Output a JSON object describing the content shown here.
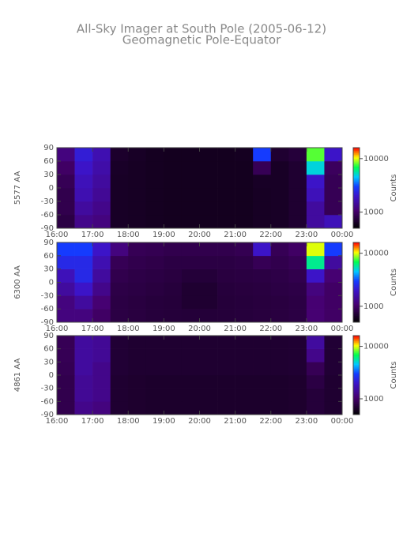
{
  "title": "All-Sky Imager at South Pole (2005-06-12)",
  "subtitle": "Geomagnetic Pole-Equator",
  "chart_data": [
    {
      "type": "heatmap",
      "ylabel": "5577 AA",
      "colorbar_label": "Counts",
      "color_scale": "log",
      "x_bins": [
        16,
        16.5,
        17,
        17.5,
        18,
        18.5,
        19,
        19.5,
        20,
        20.5,
        21,
        21.5,
        22,
        22.5,
        23,
        23.5,
        24
      ],
      "y_bins": [
        -90,
        -60,
        -30,
        0,
        30,
        60,
        90
      ],
      "z": [
        [
          800,
          1300,
          1200,
          650,
          640,
          630,
          620,
          620,
          620,
          620,
          620,
          640,
          650,
          700,
          1500,
          1800
        ],
        [
          850,
          1500,
          1300,
          650,
          640,
          630,
          620,
          620,
          620,
          620,
          620,
          640,
          650,
          700,
          1500,
          900
        ],
        [
          850,
          1700,
          1400,
          650,
          640,
          630,
          620,
          620,
          620,
          620,
          620,
          640,
          650,
          700,
          1800,
          900
        ],
        [
          900,
          1800,
          1500,
          650,
          640,
          630,
          620,
          620,
          620,
          620,
          620,
          650,
          650,
          700,
          2000,
          900
        ],
        [
          1000,
          2000,
          1600,
          660,
          640,
          630,
          620,
          620,
          620,
          620,
          620,
          900,
          650,
          700,
          5000,
          950
        ],
        [
          1200,
          2200,
          1700,
          680,
          650,
          630,
          620,
          620,
          620,
          620,
          630,
          3000,
          700,
          750,
          8000,
          2000
        ]
      ],
      "xlim": [
        16,
        24
      ],
      "ylim": [
        -90,
        90
      ],
      "xticks": [
        {
          "value": 16,
          "label": "16:00"
        },
        {
          "value": 17,
          "label": "17:00"
        },
        {
          "value": 18,
          "label": "18:00"
        },
        {
          "value": 19,
          "label": "19:00"
        },
        {
          "value": 20,
          "label": "20:00"
        },
        {
          "value": 21,
          "label": "21:00"
        },
        {
          "value": 22,
          "label": "22:00"
        },
        {
          "value": 23,
          "label": "23:00"
        },
        {
          "value": 24,
          "label": "00:00"
        }
      ],
      "yticks": [
        -90,
        -60,
        -30,
        0,
        30,
        60,
        90
      ],
      "clim": [
        500,
        16000
      ],
      "cticks": [
        1000,
        10000
      ]
    },
    {
      "type": "heatmap",
      "ylabel": "6300 AA",
      "colorbar_label": "Counts",
      "color_scale": "log",
      "x_bins": [
        16,
        16.5,
        17,
        17.5,
        18,
        18.5,
        19,
        19.5,
        20,
        20.5,
        21,
        21.5,
        22,
        22.5,
        23,
        23.5,
        24
      ],
      "y_bins": [
        -90,
        -60,
        -30,
        0,
        30,
        60,
        90
      ],
      "z": [
        [
          1200,
          1200,
          1000,
          800,
          780,
          760,
          750,
          740,
          740,
          750,
          760,
          770,
          780,
          800,
          1100,
          1000
        ],
        [
          1200,
          1500,
          1100,
          800,
          780,
          760,
          750,
          700,
          700,
          750,
          760,
          770,
          780,
          800,
          1100,
          1000
        ],
        [
          1500,
          2000,
          1300,
          820,
          800,
          780,
          760,
          700,
          700,
          760,
          770,
          780,
          800,
          820,
          1200,
          1000
        ],
        [
          1800,
          2500,
          1500,
          850,
          820,
          800,
          780,
          740,
          740,
          780,
          790,
          800,
          820,
          850,
          2000,
          1100
        ],
        [
          2500,
          2500,
          1700,
          900,
          850,
          830,
          800,
          800,
          800,
          800,
          820,
          900,
          850,
          900,
          6000,
          1500
        ],
        [
          3000,
          3000,
          2000,
          1200,
          900,
          880,
          850,
          850,
          850,
          850,
          880,
          2000,
          900,
          1000,
          10000,
          3000
        ]
      ],
      "xlim": [
        16,
        24
      ],
      "ylim": [
        -90,
        90
      ],
      "xticks": [
        {
          "value": 16,
          "label": "16:00"
        },
        {
          "value": 17,
          "label": "17:00"
        },
        {
          "value": 18,
          "label": "18:00"
        },
        {
          "value": 19,
          "label": "19:00"
        },
        {
          "value": 20,
          "label": "20:00"
        },
        {
          "value": 21,
          "label": "21:00"
        },
        {
          "value": 22,
          "label": "22:00"
        },
        {
          "value": 23,
          "label": "23:00"
        },
        {
          "value": 24,
          "label": "00:00"
        }
      ],
      "yticks": [
        -90,
        -60,
        -30,
        0,
        30,
        60,
        90
      ],
      "clim": [
        500,
        16000
      ],
      "cticks": [
        1000,
        10000
      ]
    },
    {
      "type": "heatmap",
      "ylabel": "4861 AA",
      "colorbar_label": "Counts",
      "color_scale": "log",
      "x_bins": [
        16,
        16.5,
        17,
        17.5,
        18,
        18.5,
        19,
        19.5,
        20,
        20.5,
        21,
        21.5,
        22,
        22.5,
        23,
        23.5,
        24
      ],
      "y_bins": [
        -90,
        -60,
        -30,
        0,
        30,
        60,
        90
      ],
      "z": [
        [
          850,
          1300,
          1200,
          700,
          690,
          680,
          680,
          680,
          680,
          680,
          680,
          680,
          680,
          690,
          750,
          700
        ],
        [
          850,
          1400,
          1300,
          700,
          690,
          680,
          680,
          680,
          680,
          680,
          680,
          680,
          680,
          690,
          750,
          700
        ],
        [
          850,
          1400,
          1300,
          700,
          690,
          680,
          680,
          680,
          680,
          680,
          680,
          680,
          680,
          690,
          800,
          700
        ],
        [
          880,
          1500,
          1300,
          720,
          700,
          700,
          700,
          700,
          700,
          700,
          700,
          700,
          700,
          710,
          900,
          720
        ],
        [
          900,
          1500,
          1400,
          720,
          700,
          700,
          700,
          700,
          700,
          700,
          700,
          700,
          700,
          710,
          1300,
          720
        ],
        [
          900,
          1500,
          1400,
          720,
          700,
          700,
          700,
          700,
          700,
          700,
          700,
          700,
          700,
          710,
          1500,
          720
        ]
      ],
      "xlim": [
        16,
        24
      ],
      "ylim": [
        -90,
        90
      ],
      "xticks": [
        {
          "value": 16,
          "label": "16:00"
        },
        {
          "value": 17,
          "label": "17:00"
        },
        {
          "value": 18,
          "label": "18:00"
        },
        {
          "value": 19,
          "label": "19:00"
        },
        {
          "value": 20,
          "label": "20:00"
        },
        {
          "value": 21,
          "label": "21:00"
        },
        {
          "value": 22,
          "label": "22:00"
        },
        {
          "value": 23,
          "label": "23:00"
        },
        {
          "value": 24,
          "label": "00:00"
        }
      ],
      "yticks": [
        -90,
        -60,
        -30,
        0,
        30,
        60,
        90
      ],
      "clim": [
        500,
        16000
      ],
      "cticks": [
        1000,
        10000
      ]
    }
  ]
}
